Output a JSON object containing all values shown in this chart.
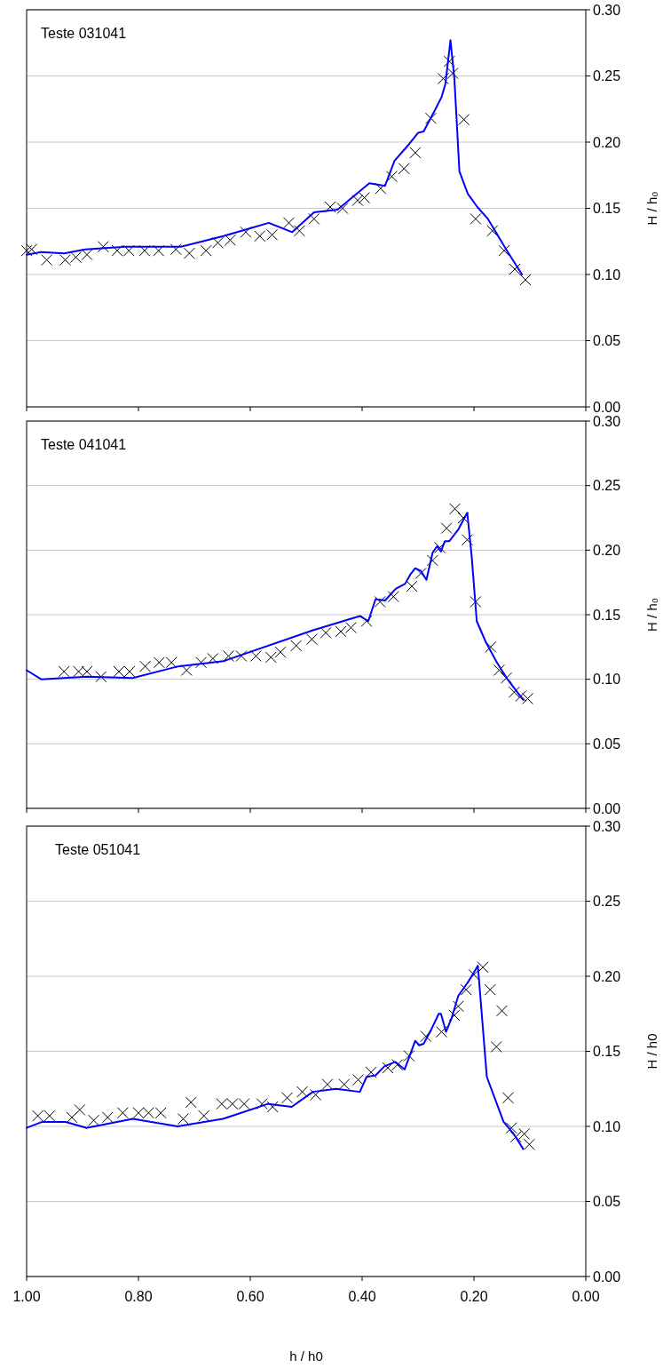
{
  "chart_data": [
    {
      "type": "scatter",
      "title": "Teste 031041",
      "ylabel": "H / h₀",
      "xlim": [
        1,
        0
      ],
      "xticks": [
        {
          "value": 1,
          "label": null
        },
        {
          "value": 0.8,
          "label": null
        },
        {
          "value": 0.6,
          "label": null
        },
        {
          "value": 0.4,
          "label": null
        },
        {
          "value": 0.2,
          "label": null
        },
        {
          "value": 0,
          "label": null
        }
      ],
      "ylim": [
        0,
        0.3
      ],
      "yticks": [
        {
          "value": 0,
          "label": "0.00"
        },
        {
          "value": 0.05,
          "label": "0.05"
        },
        {
          "value": 0.1,
          "label": "0.10"
        },
        {
          "value": 0.15,
          "label": "0.15"
        },
        {
          "value": 0.2,
          "label": "0.20"
        },
        {
          "value": 0.25,
          "label": "0.25"
        },
        {
          "value": 0.3,
          "label": "0.30"
        }
      ],
      "tick_labels": "y",
      "grid": "y",
      "series": [
        {
          "marker": "cross",
          "color": "#000000",
          "x": [
            1.0,
            0.991,
            0.964,
            0.931,
            0.912,
            0.892,
            0.863,
            0.838,
            0.817,
            0.789,
            0.764,
            0.733,
            0.709,
            0.679,
            0.658,
            0.636,
            0.608,
            0.583,
            0.561,
            0.531,
            0.512,
            0.486,
            0.457,
            0.435,
            0.408,
            0.396,
            0.367,
            0.347,
            0.325,
            0.305,
            0.277,
            0.255,
            0.244,
            0.238,
            0.218,
            0.197,
            0.167,
            0.146,
            0.127,
            0.108
          ],
          "values": [
            0.118,
            0.119,
            0.111,
            0.111,
            0.113,
            0.115,
            0.121,
            0.118,
            0.118,
            0.118,
            0.118,
            0.119,
            0.116,
            0.118,
            0.124,
            0.126,
            0.132,
            0.129,
            0.13,
            0.139,
            0.133,
            0.142,
            0.151,
            0.15,
            0.156,
            0.158,
            0.165,
            0.174,
            0.18,
            0.192,
            0.218,
            0.248,
            0.261,
            0.252,
            0.217,
            0.142,
            0.133,
            0.118,
            0.104,
            0.096
          ]
        },
        {
          "type": "line",
          "marker": "none",
          "line_style": "solid",
          "color": "#0000ff",
          "x": [
            1.0,
            0.974,
            0.933,
            0.895,
            0.823,
            0.792,
            0.724,
            0.648,
            0.567,
            0.525,
            0.486,
            0.444,
            0.387,
            0.359,
            0.342,
            0.317,
            0.3,
            0.29,
            0.27,
            0.258,
            0.251,
            0.242,
            0.235,
            0.226,
            0.211,
            0.194,
            0.175,
            0.141,
            0.114
          ],
          "values": [
            0.115,
            0.117,
            0.116,
            0.119,
            0.121,
            0.121,
            0.121,
            0.129,
            0.139,
            0.132,
            0.147,
            0.149,
            0.169,
            0.167,
            0.186,
            0.198,
            0.207,
            0.208,
            0.224,
            0.234,
            0.244,
            0.277,
            0.248,
            0.178,
            0.161,
            0.151,
            0.142,
            0.118,
            0.1
          ]
        }
      ]
    },
    {
      "type": "scatter",
      "title": "Teste 041041",
      "ylabel": "H / h₀",
      "xlim": [
        1,
        0
      ],
      "xticks": [
        {
          "value": 1,
          "label": null
        },
        {
          "value": 0.8,
          "label": null
        },
        {
          "value": 0.6,
          "label": null
        },
        {
          "value": 0.4,
          "label": null
        },
        {
          "value": 0.2,
          "label": null
        },
        {
          "value": 0,
          "label": null
        }
      ],
      "ylim": [
        0,
        0.3
      ],
      "yticks": [
        {
          "value": 0,
          "label": "0.00"
        },
        {
          "value": 0.05,
          "label": "0.05"
        },
        {
          "value": 0.1,
          "label": "0.10"
        },
        {
          "value": 0.15,
          "label": "0.15"
        },
        {
          "value": 0.2,
          "label": "0.20"
        },
        {
          "value": 0.25,
          "label": "0.25"
        },
        {
          "value": 0.3,
          "label": "0.30"
        }
      ],
      "tick_labels": "y",
      "grid": "y",
      "series": [
        {
          "marker": "cross",
          "color": "#000000",
          "x": [
            0.933,
            0.907,
            0.892,
            0.867,
            0.835,
            0.816,
            0.788,
            0.763,
            0.741,
            0.714,
            0.688,
            0.667,
            0.639,
            0.616,
            0.59,
            0.563,
            0.546,
            0.518,
            0.49,
            0.465,
            0.438,
            0.42,
            0.392,
            0.368,
            0.344,
            0.311,
            0.295,
            0.274,
            0.261,
            0.249,
            0.234,
            0.219,
            0.212,
            0.197,
            0.17,
            0.155,
            0.142,
            0.128,
            0.116,
            0.104
          ],
          "values": [
            0.106,
            0.106,
            0.106,
            0.102,
            0.106,
            0.106,
            0.11,
            0.113,
            0.113,
            0.107,
            0.113,
            0.116,
            0.118,
            0.118,
            0.118,
            0.117,
            0.121,
            0.126,
            0.131,
            0.136,
            0.137,
            0.14,
            0.145,
            0.16,
            0.164,
            0.172,
            0.182,
            0.192,
            0.202,
            0.217,
            0.232,
            0.225,
            0.208,
            0.16,
            0.125,
            0.107,
            0.101,
            0.09,
            0.087,
            0.085
          ]
        },
        {
          "type": "line",
          "marker": "none",
          "line_style": "solid",
          "color": "#0000ff",
          "x": [
            1.0,
            0.974,
            0.892,
            0.81,
            0.729,
            0.648,
            0.488,
            0.404,
            0.389,
            0.376,
            0.359,
            0.34,
            0.323,
            0.314,
            0.305,
            0.295,
            0.285,
            0.274,
            0.266,
            0.259,
            0.252,
            0.244,
            0.228,
            0.212,
            0.204,
            0.195,
            0.179,
            0.159,
            0.14,
            0.112
          ],
          "values": [
            0.107,
            0.1,
            0.102,
            0.101,
            0.11,
            0.114,
            0.138,
            0.149,
            0.145,
            0.162,
            0.161,
            0.17,
            0.174,
            0.181,
            0.186,
            0.184,
            0.177,
            0.198,
            0.203,
            0.199,
            0.207,
            0.207,
            0.216,
            0.229,
            0.195,
            0.145,
            0.129,
            0.113,
            0.1,
            0.084
          ]
        }
      ]
    },
    {
      "type": "scatter",
      "title": "Teste 051041",
      "ylabel": "H / h0",
      "xlabel": "h / h0",
      "xlim": [
        1,
        0
      ],
      "xticks": [
        {
          "value": 1,
          "label": "1.00"
        },
        {
          "value": 0.8,
          "label": "0.80"
        },
        {
          "value": 0.6,
          "label": "0.60"
        },
        {
          "value": 0.4,
          "label": "0.40"
        },
        {
          "value": 0.2,
          "label": "0.20"
        },
        {
          "value": 0,
          "label": "0.00"
        }
      ],
      "ylim": [
        0,
        0.3
      ],
      "yticks": [
        {
          "value": 0,
          "label": "0.00"
        },
        {
          "value": 0.05,
          "label": "0.05"
        },
        {
          "value": 0.1,
          "label": "0.10"
        },
        {
          "value": 0.15,
          "label": "0.15"
        },
        {
          "value": 0.2,
          "label": "0.20"
        },
        {
          "value": 0.25,
          "label": "0.25"
        },
        {
          "value": 0.3,
          "label": "0.30"
        }
      ],
      "grid": "y",
      "series": [
        {
          "marker": "cross",
          "color": "#000000",
          "x": [
            0.98,
            0.959,
            0.919,
            0.905,
            0.88,
            0.855,
            0.828,
            0.8,
            0.782,
            0.76,
            0.72,
            0.706,
            0.683,
            0.651,
            0.632,
            0.611,
            0.579,
            0.56,
            0.534,
            0.507,
            0.483,
            0.462,
            0.432,
            0.407,
            0.384,
            0.354,
            0.337,
            0.316,
            0.286,
            0.258,
            0.235,
            0.228,
            0.214,
            0.2,
            0.184,
            0.171,
            0.15,
            0.16,
            0.139,
            0.133,
            0.125,
            0.11,
            0.101
          ],
          "values": [
            0.107,
            0.107,
            0.106,
            0.111,
            0.104,
            0.106,
            0.109,
            0.109,
            0.109,
            0.109,
            0.105,
            0.116,
            0.107,
            0.115,
            0.115,
            0.115,
            0.115,
            0.113,
            0.119,
            0.123,
            0.121,
            0.128,
            0.128,
            0.131,
            0.136,
            0.139,
            0.141,
            0.147,
            0.16,
            0.163,
            0.174,
            0.18,
            0.191,
            0.201,
            0.206,
            0.191,
            0.177,
            0.153,
            0.119,
            0.099,
            0.093,
            0.095,
            0.088
          ]
        },
        {
          "type": "line",
          "marker": "none",
          "line_style": "solid",
          "color": "#0000ff",
          "x": [
            1.0,
            0.972,
            0.93,
            0.893,
            0.81,
            0.73,
            0.649,
            0.568,
            0.526,
            0.488,
            0.447,
            0.404,
            0.392,
            0.376,
            0.36,
            0.341,
            0.324,
            0.305,
            0.298,
            0.29,
            0.277,
            0.263,
            0.259,
            0.25,
            0.24,
            0.228,
            0.209,
            0.193,
            0.177,
            0.162,
            0.147,
            0.129,
            0.112
          ],
          "values": [
            0.099,
            0.103,
            0.103,
            0.099,
            0.105,
            0.1,
            0.105,
            0.115,
            0.113,
            0.123,
            0.125,
            0.123,
            0.133,
            0.134,
            0.14,
            0.143,
            0.138,
            0.157,
            0.154,
            0.155,
            0.164,
            0.175,
            0.175,
            0.163,
            0.172,
            0.187,
            0.197,
            0.207,
            0.133,
            0.118,
            0.103,
            0.095,
            0.085
          ]
        }
      ]
    }
  ]
}
